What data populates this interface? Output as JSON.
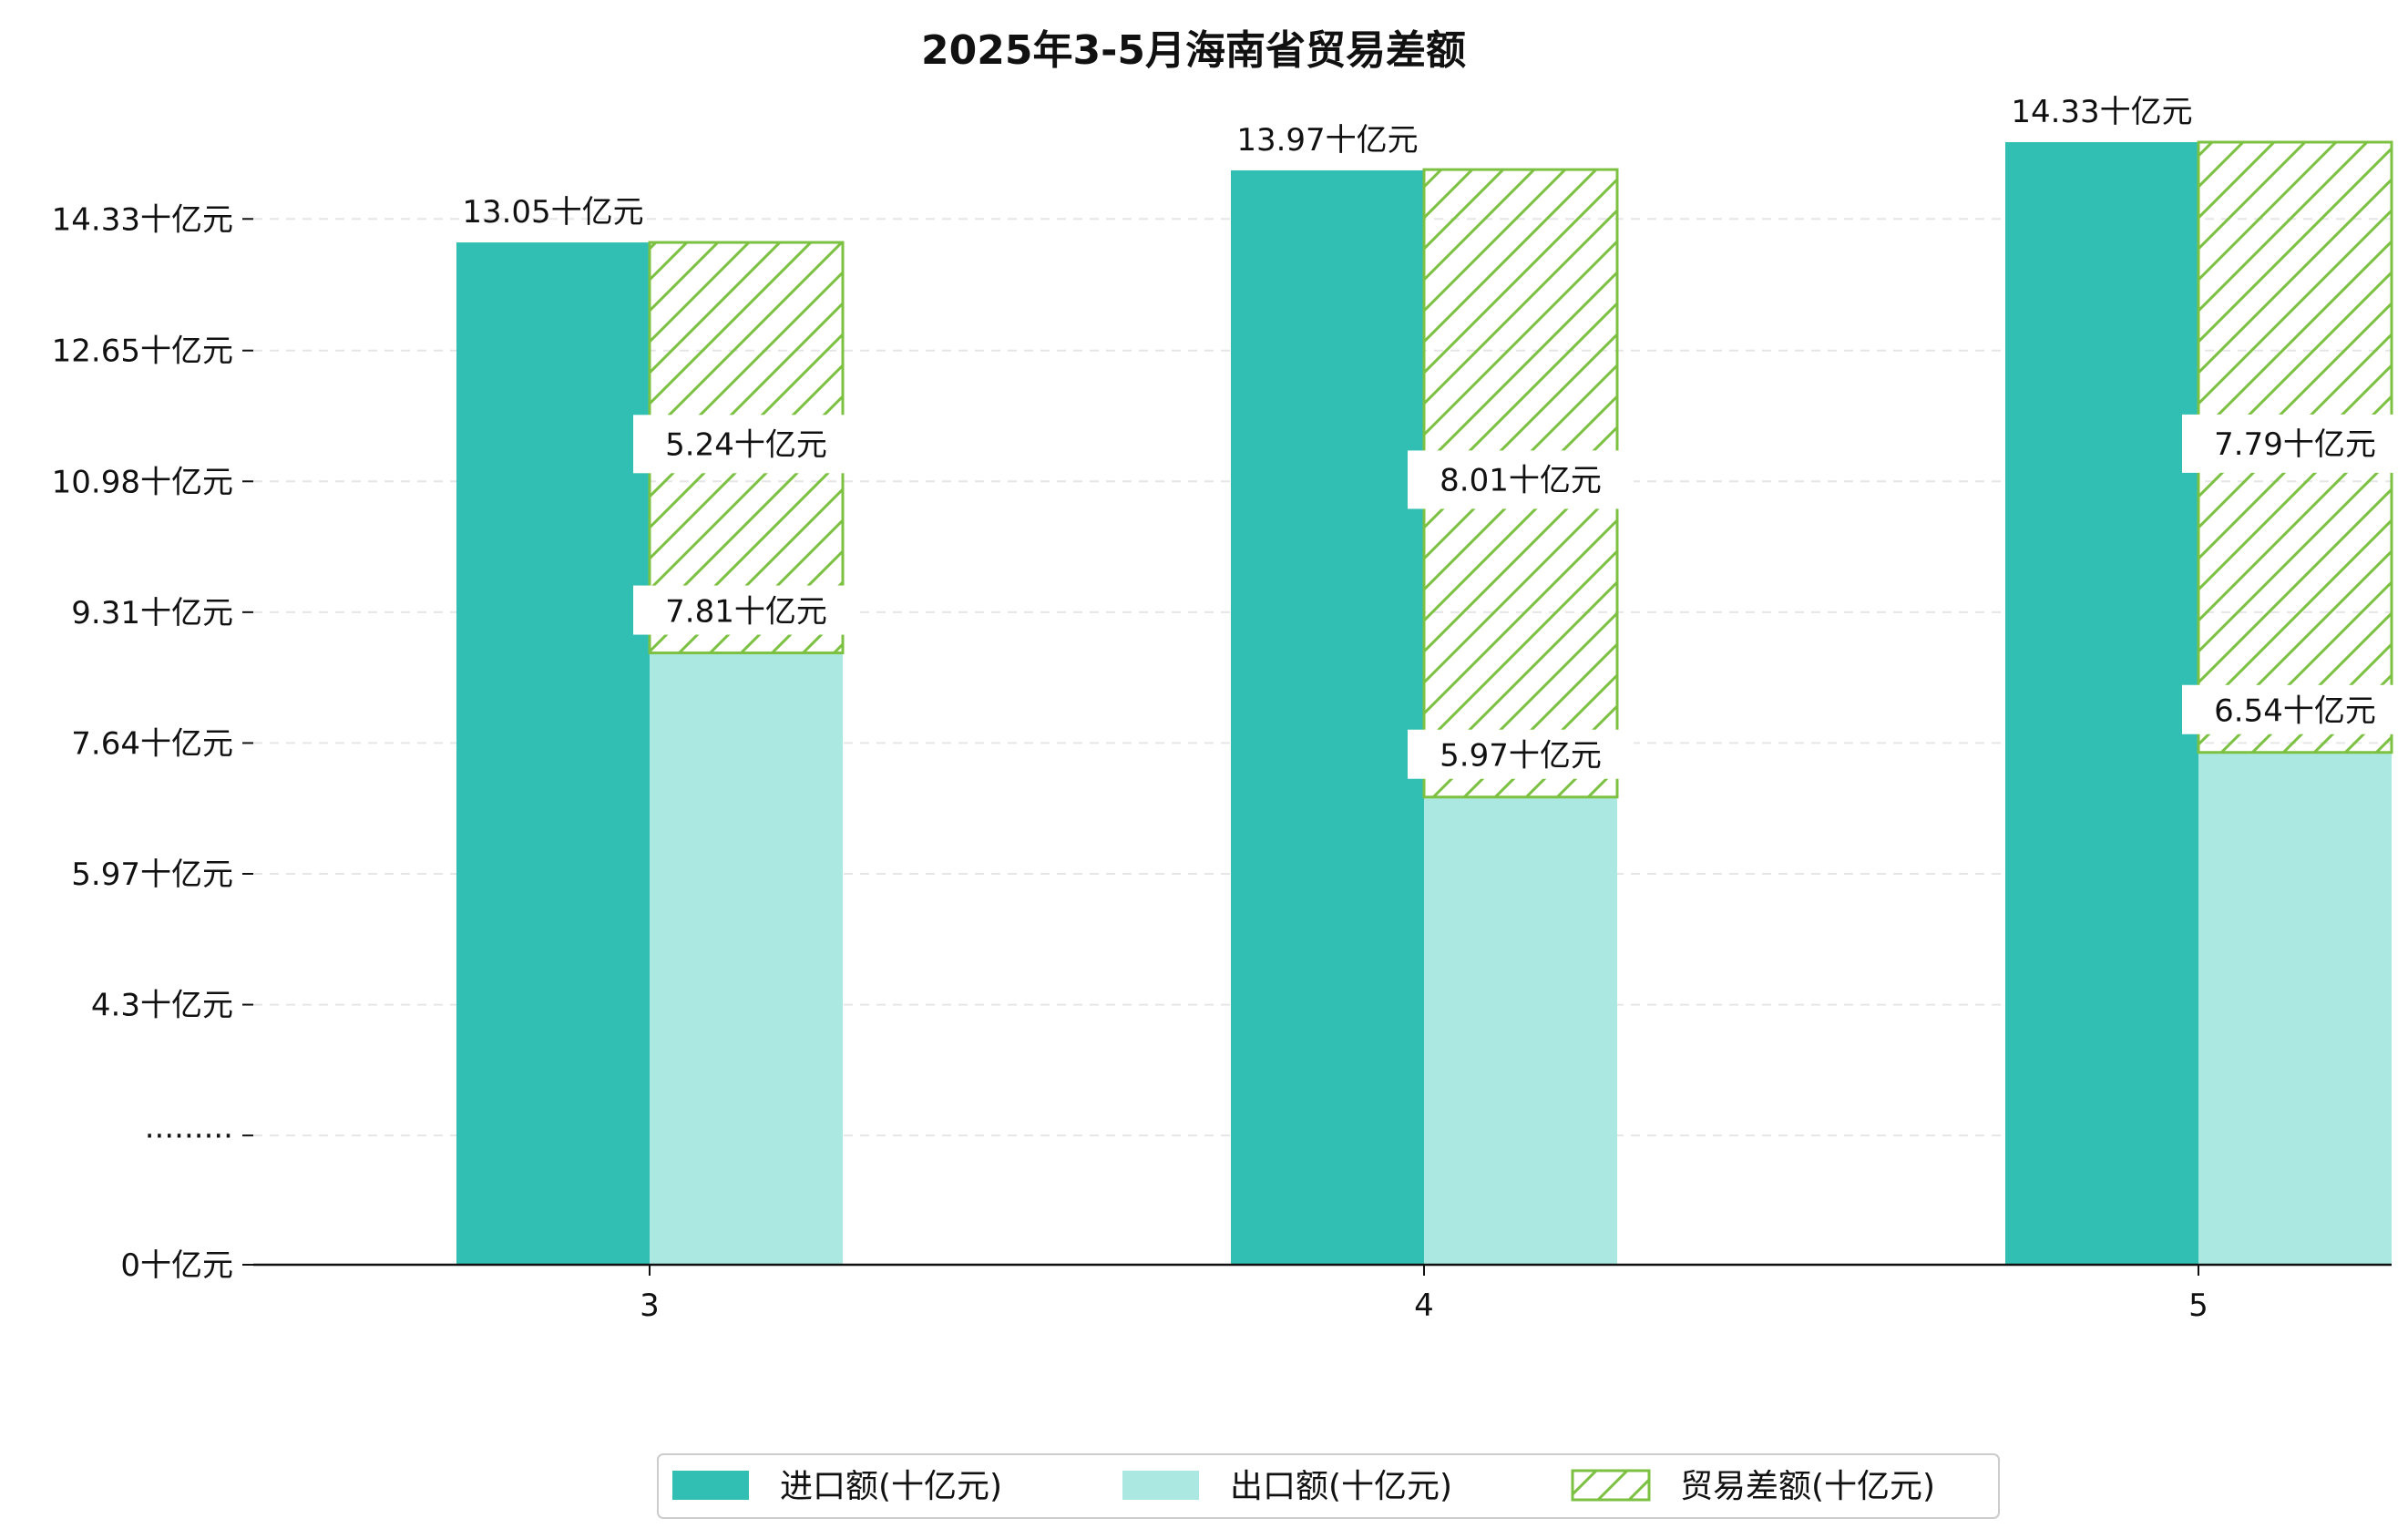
{
  "chart_data": {
    "type": "bar",
    "title": "2025年3-5月海南省贸易差额",
    "categories": [
      "3",
      "4",
      "5"
    ],
    "unit": "十亿元",
    "series": [
      {
        "name": "进口额(十亿元)",
        "values": [
          13.05,
          13.97,
          14.33
        ],
        "color": "#30bfb2"
      },
      {
        "name": "出口额(十亿元)",
        "values": [
          7.81,
          5.97,
          6.54
        ],
        "color": "#abe8e2"
      },
      {
        "name": "贸易差额(十亿元)",
        "values": [
          5.24,
          8.01,
          7.79
        ],
        "color": "#7cc142",
        "hatch": true
      }
    ],
    "data_labels": {
      "import": [
        "13.05十亿元",
        "13.97十亿元",
        "14.33十亿元"
      ],
      "export": [
        "7.81十亿元",
        "5.97十亿元",
        "6.54十亿元"
      ],
      "balance": [
        "5.24十亿元",
        "8.01十亿元",
        "7.79十亿元"
      ]
    },
    "yticks": [
      {
        "value": 0,
        "label": "0十亿元"
      },
      {
        "value": 1.65,
        "label": "·········"
      },
      {
        "value": 3.32,
        "label": "4.3十亿元"
      },
      {
        "value": 4.99,
        "label": "5.97十亿元"
      },
      {
        "value": 6.66,
        "label": "7.64十亿元"
      },
      {
        "value": 8.33,
        "label": "9.31十亿元"
      },
      {
        "value": 10.0,
        "label": "10.98十亿元"
      },
      {
        "value": 11.67,
        "label": "12.65十亿元"
      },
      {
        "value": 13.35,
        "label": "14.33十亿元"
      }
    ],
    "ylim": [
      0,
      14.4
    ],
    "grid": true,
    "legend_position": "bottom"
  }
}
